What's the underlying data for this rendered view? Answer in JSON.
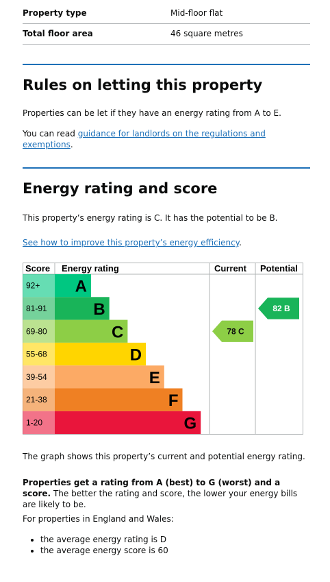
{
  "summary": {
    "rows": [
      [
        "Property type",
        "Mid-floor flat"
      ],
      [
        "Total floor area",
        "46 square metres"
      ]
    ]
  },
  "letting": {
    "title": "Rules on letting this property",
    "text": "Properties can be let if they have an energy rating from A to E.",
    "read_prefix": "You can read ",
    "link": "guidance for landlords on the regulations and exemptions",
    "read_suffix": "."
  },
  "rating": {
    "title": "Energy rating and score",
    "text": "This property’s energy rating is C. It has the potential to be B.",
    "link": "See how to improve this property’s energy efficiency",
    "link_suffix": ".",
    "chart": {
      "headers": [
        "Score",
        "Energy rating",
        "Current",
        "Potential"
      ],
      "bands": [
        {
          "score": "92+",
          "letter": "A",
          "color": "#00c781"
        },
        {
          "score": "81-91",
          "letter": "B",
          "color": "#19b459"
        },
        {
          "score": "69-80",
          "letter": "C",
          "color": "#8dce46"
        },
        {
          "score": "55-68",
          "letter": "D",
          "color": "#ffd500"
        },
        {
          "score": "39-54",
          "letter": "E",
          "color": "#fcaa65"
        },
        {
          "score": "21-38",
          "letter": "F",
          "color": "#ef8023"
        },
        {
          "score": "1-20",
          "letter": "G",
          "color": "#e9153b"
        }
      ],
      "current": {
        "value": 78,
        "band": "C"
      },
      "potential": {
        "value": 82,
        "band": "B"
      }
    },
    "note": "The graph shows this property’s current and potential energy rating.",
    "bold": "Properties get a rating from A (best) to G (worst) and a score.",
    "after_bold": " The better the rating and score, the lower your energy bills are likely to be.",
    "intro": "For properties in England and Wales:",
    "bullets": [
      "the average energy rating is D",
      "the average energy score is 60"
    ]
  }
}
